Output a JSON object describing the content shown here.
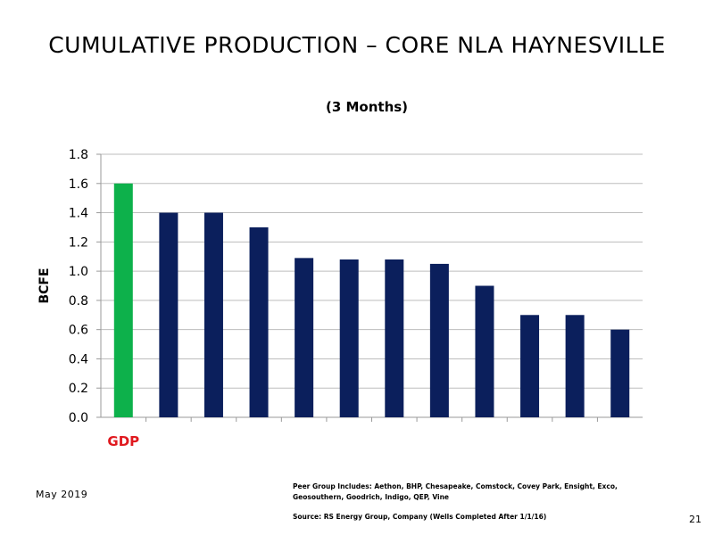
{
  "slide": {
    "title": "CUMULATIVE PRODUCTION – CORE NLA HAYNESVILLE",
    "date": "May 2019",
    "page_number": "21",
    "peer_note": "Peer Group Includes: Aethon, BHP, Chesapeake, Comstock, Covey Park, Ensight, Exco, Geosouthern, Goodrich, Indigo, QEP, Vine",
    "source": "Source: RS Energy Group, Company  (Wells Completed After 1/1/16)"
  },
  "chart_data": {
    "type": "bar",
    "title": "",
    "subtitle": "(3 Months)",
    "xlabel": "",
    "ylabel": "BCFE",
    "ylim": [
      0,
      1.8
    ],
    "yticks": [
      "0.0",
      "0.2",
      "0.4",
      "0.6",
      "0.8",
      "1.0",
      "1.2",
      "1.4",
      "1.6",
      "1.8"
    ],
    "grid": true,
    "categories": [
      "GDP",
      "",
      "",
      "",
      "",
      "",
      "",
      "",
      "",
      "",
      "",
      ""
    ],
    "values": [
      1.6,
      1.4,
      1.4,
      1.3,
      1.09,
      1.08,
      1.08,
      1.05,
      0.9,
      0.7,
      0.7,
      0.6
    ],
    "highlight_index": 0,
    "colors": {
      "highlight": "#0db14b",
      "bar": "#0b1f5c",
      "highlight_label": "#e0191f",
      "grid": "#bdbdbd",
      "axis": "#9a9a9a"
    }
  }
}
